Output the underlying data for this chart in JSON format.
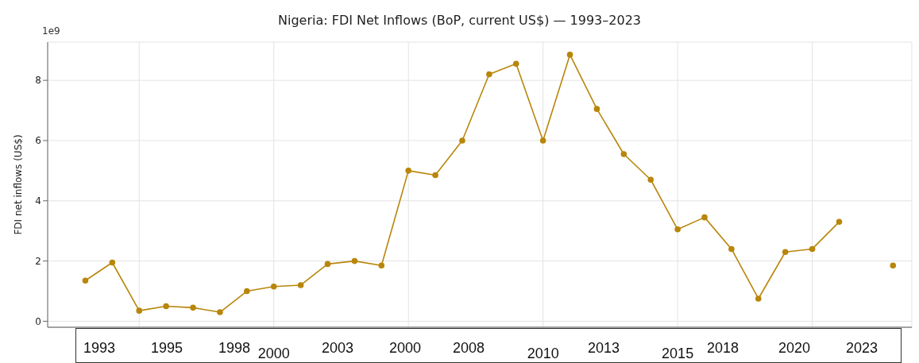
{
  "chart_data": {
    "type": "line",
    "title": "Nigeria: FDI Net Inflows (BoP, current US$) — 1993–2023",
    "ylabel": "FDI net inflows (US$)",
    "annotations": [
      "1e9",
      "1993",
      "1995",
      "1998",
      "2003",
      "2000",
      "2008",
      "2013",
      "2018",
      "2020",
      "2023"
    ],
    "x": [
      1993,
      1994,
      1995,
      1996,
      1997,
      1998,
      1999,
      2000,
      2001,
      2002,
      2003,
      2004,
      2005,
      2006,
      2007,
      2008,
      2009,
      2010,
      2011,
      2012,
      2013,
      2014,
      2015,
      2016,
      2017,
      2018,
      2019,
      2020,
      2021,
      2022,
      2023
    ],
    "series": [
      {
        "color": "#b8860b",
        "values": [
          1.35,
          1.95,
          0.35,
          0.5,
          0.45,
          0.3,
          1.0,
          1.15,
          1.2,
          1.9,
          2.0,
          1.85,
          5.0,
          4.85,
          6.0,
          8.2,
          8.55,
          6.0,
          8.85,
          7.05,
          5.55,
          4.7,
          3.05,
          3.45,
          2.4,
          0.75,
          2.3,
          2.4,
          3.3,
          null,
          1.85
        ]
      }
    ],
    "xlim": [
      1991.6,
      2023.7
    ],
    "xticks": [
      {
        "value": 1995,
        "label": null
      },
      2000,
      {
        "value": 2005,
        "label": null
      },
      2010,
      2015,
      {
        "value": 2020,
        "label": null
      }
    ],
    "ylim": [
      -0.2,
      9.27
    ],
    "yticks": [
      0,
      2,
      4,
      6,
      8
    ],
    "grid": true,
    "marker": "circle",
    "line_style": "solid"
  }
}
